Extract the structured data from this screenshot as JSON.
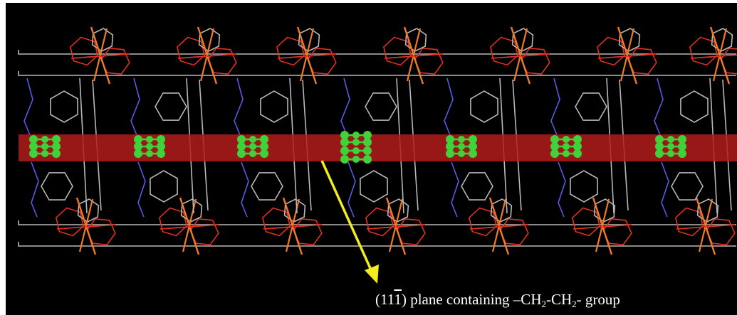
{
  "figure": {
    "background": "#000000",
    "plane_color": "#b31b1b",
    "arrow_color": "#f2ec1e",
    "bond_gray": "#b8b8b8",
    "bond_red": "#e0301e",
    "bond_orange": "#f07a2a",
    "nitrogen_blue": "#5a5ae6",
    "atom_green": "#3fd23a"
  },
  "caption": {
    "miller_open": "(11",
    "miller_bar_digit": "1",
    "miller_close": ")",
    "text_before": " plane containing –CH",
    "sub_1": "2",
    "text_middle": "-CH",
    "sub_2": "2",
    "text_after": "- group"
  }
}
